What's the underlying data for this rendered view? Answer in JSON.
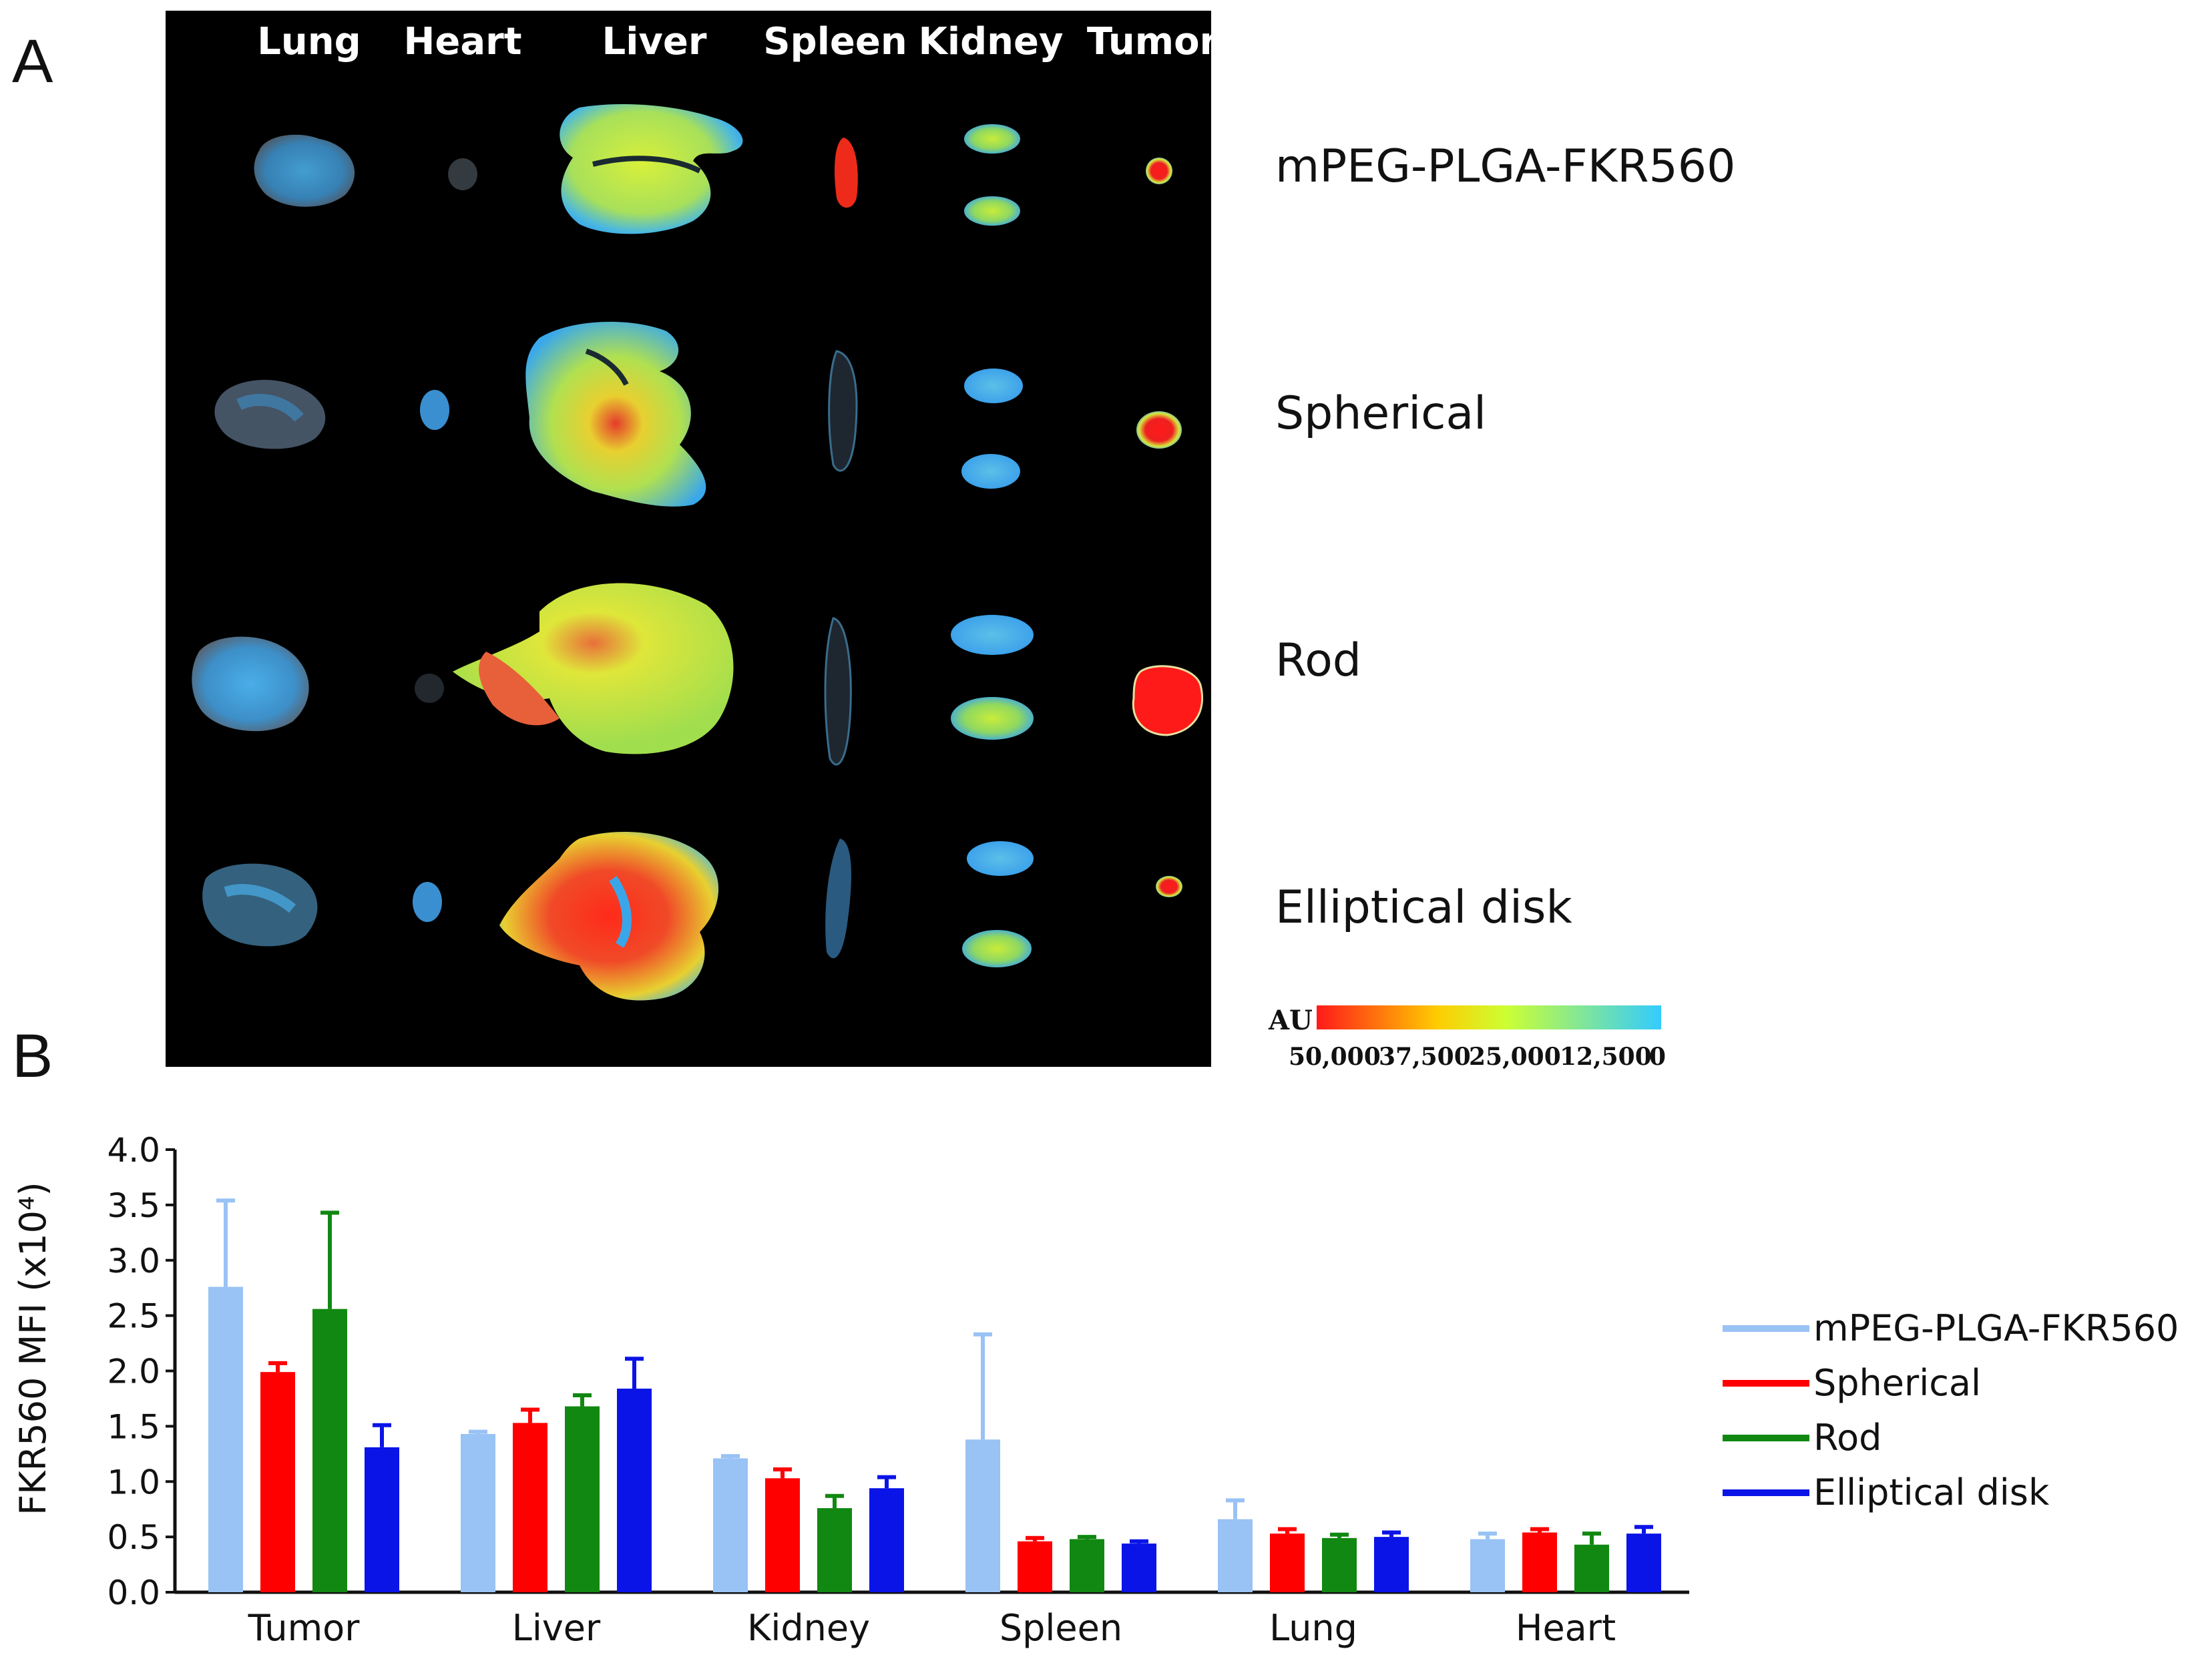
{
  "panel_labels": {
    "a": "A",
    "b": "B"
  },
  "image_panel": {
    "organ_headers": [
      "Lung",
      "Heart",
      "Liver",
      "Spleen",
      "Kidney",
      "Tumor"
    ],
    "group_labels": [
      "mPEG-PLGA-FKR560",
      "Spherical",
      "Rod",
      "Elliptical disk"
    ],
    "colorbar": {
      "label": "AU",
      "ticks": [
        "50,000",
        "37,500",
        "25,000",
        "12,500",
        "0"
      ],
      "colors": [
        "#ff1a1a",
        "#ffcc00",
        "#ccff33",
        "#33ccff"
      ]
    }
  },
  "chart_data": {
    "type": "bar",
    "categories": [
      "Tumor",
      "Liver",
      "Kidney",
      "Spleen",
      "Lung",
      "Heart"
    ],
    "ylabel": "FKR560 MFI (x10⁴)",
    "ylim": [
      0,
      4.0
    ],
    "yticks": [
      "0.0",
      "0.5",
      "1.0",
      "1.5",
      "2.0",
      "2.5",
      "3.0",
      "3.5",
      "4.0"
    ],
    "legend_position": "right",
    "series": [
      {
        "name": "mPEG-PLGA-FKR560",
        "color": "#99c2f5",
        "values": [
          2.76,
          1.43,
          1.21,
          1.38,
          0.66,
          0.48
        ],
        "errors": [
          0.78,
          0.02,
          0.02,
          0.95,
          0.17,
          0.05
        ]
      },
      {
        "name": "Spherical",
        "color": "#ff0000",
        "values": [
          1.99,
          1.53,
          1.03,
          0.46,
          0.53,
          0.54
        ],
        "errors": [
          0.08,
          0.12,
          0.08,
          0.03,
          0.04,
          0.03
        ]
      },
      {
        "name": "Rod",
        "color": "#118811",
        "values": [
          2.56,
          1.68,
          0.76,
          0.48,
          0.49,
          0.43
        ],
        "errors": [
          0.87,
          0.1,
          0.11,
          0.02,
          0.03,
          0.1
        ]
      },
      {
        "name": "Elliptical disk",
        "color": "#0a14e6",
        "values": [
          1.31,
          1.84,
          0.94,
          0.44,
          0.5,
          0.53
        ],
        "errors": [
          0.2,
          0.27,
          0.1,
          0.02,
          0.04,
          0.06
        ]
      }
    ]
  }
}
